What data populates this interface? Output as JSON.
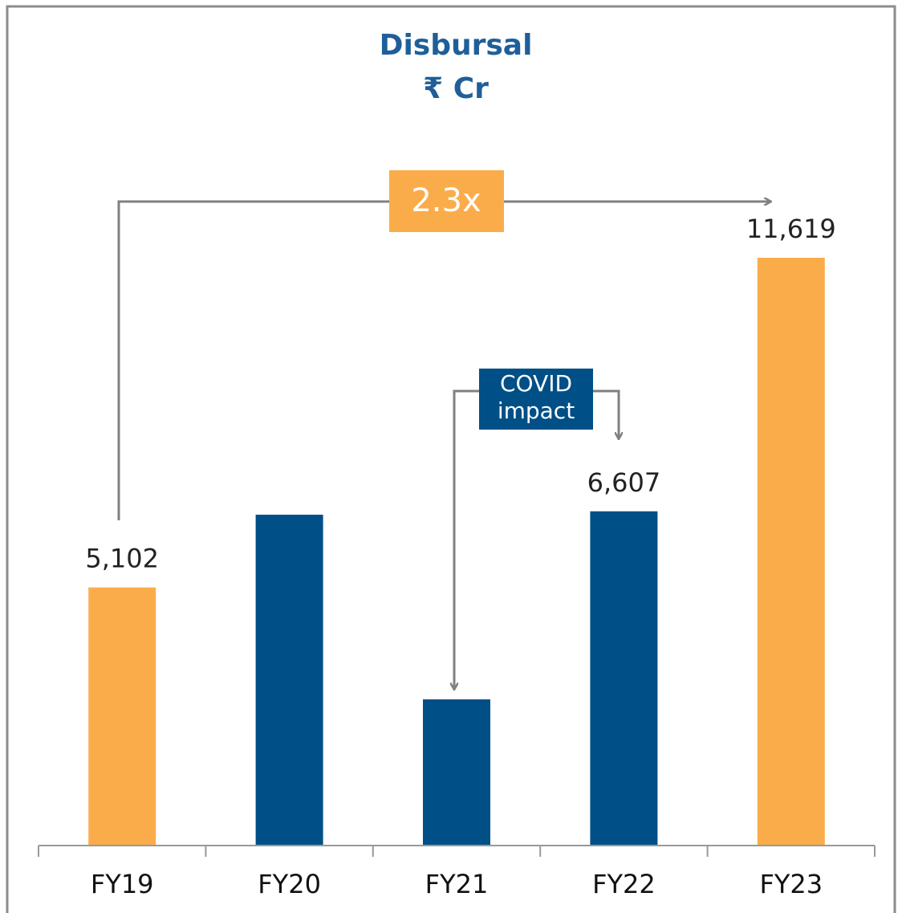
{
  "chart_data": {
    "type": "bar",
    "title": "Disbursal",
    "subtitle": "₹ Cr",
    "categories": [
      "FY19",
      "FY20",
      "FY21",
      "FY22",
      "FY23"
    ],
    "values": [
      5102,
      6540,
      2890,
      6607,
      11619
    ],
    "value_labels": [
      "5,102",
      null,
      null,
      "6,607",
      "11,619"
    ],
    "colors": [
      "#FBAC4A",
      "#004F86",
      "#004F86",
      "#004F86",
      "#FBAC4A"
    ],
    "ylim": [
      0,
      14000
    ],
    "annotations": [
      "2.3x",
      "COVID",
      "impact"
    ]
  }
}
